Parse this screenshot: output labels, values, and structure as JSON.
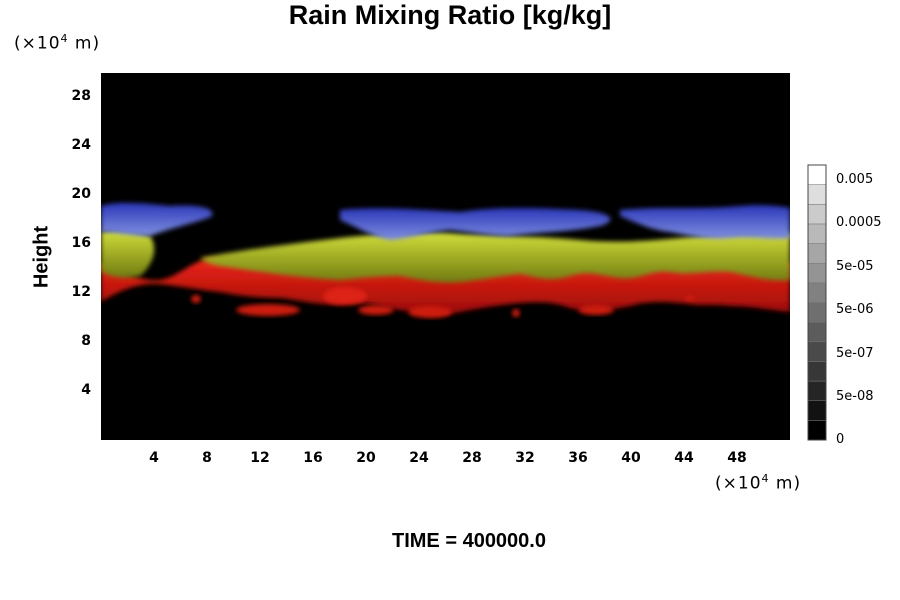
{
  "chart_data": {
    "type": "heatmap",
    "title": "Rain Mixing Ratio [kg/kg]",
    "ylabel": "Height",
    "xlabel": "",
    "x_unit": "(×10⁴ m)",
    "y_unit": "(×10⁴ m)",
    "xlim": [
      0,
      52
    ],
    "ylim": [
      0,
      30
    ],
    "x_ticks": [
      "4",
      "8",
      "12",
      "16",
      "20",
      "24",
      "28",
      "32",
      "36",
      "40",
      "44",
      "48"
    ],
    "y_ticks": [
      "4",
      "8",
      "12",
      "16",
      "20",
      "24",
      "28"
    ],
    "colorbar": {
      "labels": [
        "0.005",
        "0.0005",
        "5e-05",
        "5e-06",
        "5e-07",
        "5e-08",
        "0"
      ],
      "levels": 14,
      "colors_low_to_high": [
        "#000000",
        "#ffffff"
      ]
    },
    "background_color": "#000000",
    "layers": [
      {
        "color": "#3344cc",
        "y_range": [
          17,
          20
        ],
        "description_color": "blue"
      },
      {
        "color": "#b8c81e",
        "y_range": [
          14,
          17
        ],
        "description_color": "yellow-green"
      },
      {
        "color": "#dd1a10",
        "y_range": [
          10,
          14
        ],
        "description_color": "red"
      }
    ]
  },
  "footer": {
    "time_label": "TIME = 400000.0"
  }
}
